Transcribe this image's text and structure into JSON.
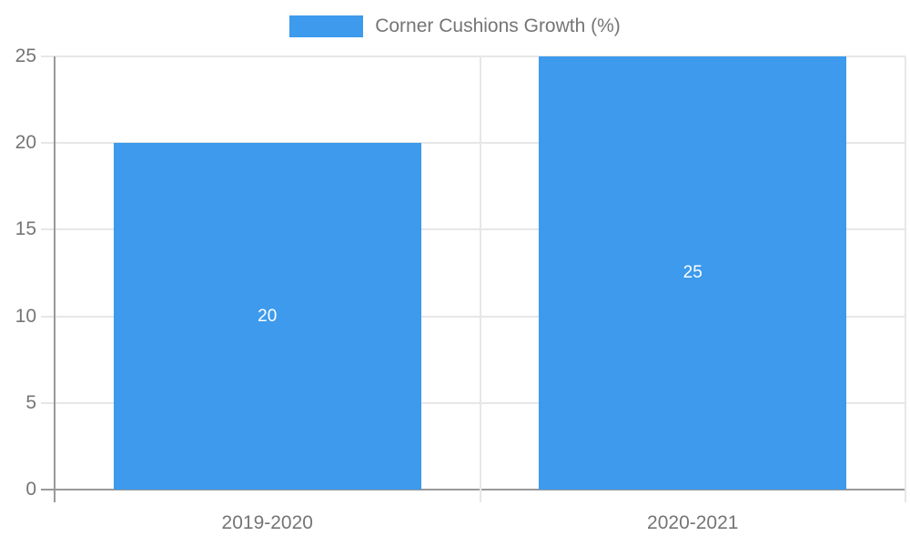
{
  "chart_data": {
    "type": "bar",
    "title": "Corner Cushions Growth (%)",
    "categories": [
      "2019-2020",
      "2020-2021"
    ],
    "values": [
      20,
      25
    ],
    "value_labels": [
      "20",
      "25"
    ],
    "xlabel": "",
    "ylabel": "",
    "ylim": [
      0,
      25
    ],
    "yticks": [
      0,
      5,
      10,
      15,
      20,
      25
    ],
    "grid": true,
    "legend_position": "top",
    "colors": {
      "bar": "#3D9AEC",
      "value_label": "#FFFFFF",
      "axis_line": "#999999",
      "gridline": "#E7E7E7",
      "tick_label": "#757575",
      "legend_text": "#757575",
      "background": "#FFFFFF"
    }
  }
}
